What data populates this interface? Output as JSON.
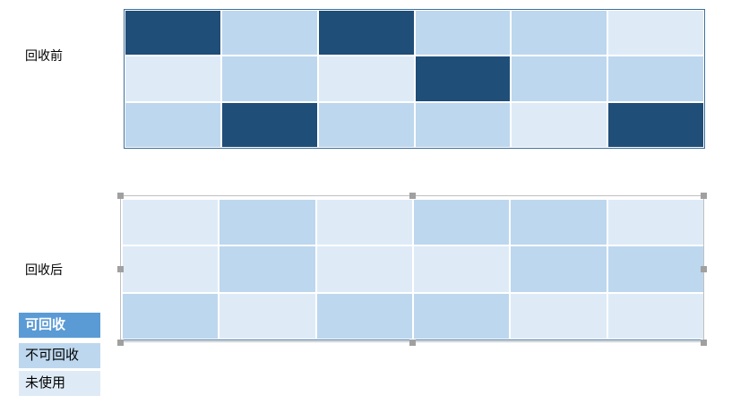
{
  "labels": {
    "before": "回收前",
    "after": "回收后"
  },
  "colors": {
    "reclaimable": "#1f4e79",
    "not_reclaimable": "#bdd7ee",
    "unused": "#deebf7",
    "legend_reclaimable_bg": "#5b9bd5",
    "legend_not_reclaimable_bg": "#bdd7ee",
    "legend_unused_bg": "#deebf7"
  },
  "grid_before": [
    [
      "reclaimable",
      "not_reclaimable",
      "reclaimable",
      "not_reclaimable",
      "not_reclaimable",
      "unused"
    ],
    [
      "unused",
      "not_reclaimable",
      "unused",
      "reclaimable",
      "not_reclaimable",
      "not_reclaimable"
    ],
    [
      "not_reclaimable",
      "reclaimable",
      "not_reclaimable",
      "not_reclaimable",
      "unused",
      "reclaimable"
    ]
  ],
  "grid_after": [
    [
      "unused",
      "not_reclaimable",
      "unused",
      "not_reclaimable",
      "not_reclaimable",
      "unused"
    ],
    [
      "unused",
      "not_reclaimable",
      "unused",
      "unused",
      "not_reclaimable",
      "not_reclaimable"
    ],
    [
      "not_reclaimable",
      "unused",
      "not_reclaimable",
      "not_reclaimable",
      "unused",
      "unused"
    ]
  ],
  "legend": [
    {
      "key": "reclaimable",
      "label": "可回收"
    },
    {
      "key": "not_reclaimable",
      "label": "不可回收"
    },
    {
      "key": "unused",
      "label": "未使用"
    }
  ]
}
